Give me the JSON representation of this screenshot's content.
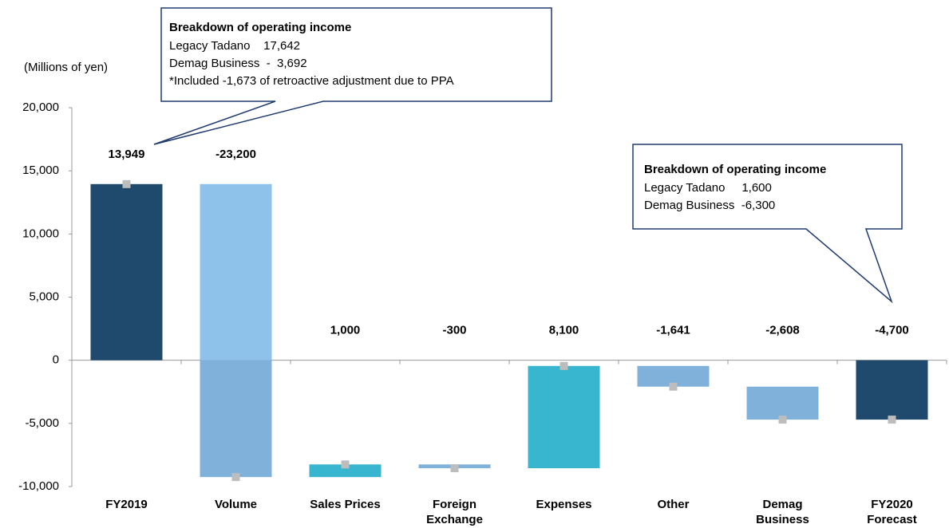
{
  "chart_data": {
    "type": "waterfall",
    "y_axis_label": "(Millions of yen)",
    "categories": [
      "FY2019",
      "Volume",
      "Sales Prices",
      "Foreign Exchange",
      "Expenses",
      "Other",
      "Demag Business",
      "FY2020 Forecast"
    ],
    "values": [
      13949,
      -23200,
      1000,
      -300,
      8100,
      -1641,
      -2608,
      -4700
    ],
    "value_labels": [
      "13,949",
      "-23,200",
      "1,000",
      "-300",
      "8,100",
      "-1,641",
      "-2,608",
      "-4,700"
    ],
    "totals": [
      true,
      false,
      false,
      false,
      false,
      false,
      false,
      true
    ],
    "colors": [
      "#204a6d",
      "#7fb1da",
      "#38b6d0",
      "#7fb1da",
      "#38b6d0",
      "#7fb1da",
      "#7fb1da",
      "#204a6d"
    ],
    "positive_part_color": "#8ec2ea",
    "marker_color": "#bdbdbd",
    "ylim": [
      -10000,
      20000
    ],
    "yticks": [
      {
        "value": -10000,
        "label": "-10,000"
      },
      {
        "value": -5000,
        "label": "-5,000"
      },
      0,
      {
        "value": 5000,
        "label": "5,000"
      },
      {
        "value": 10000,
        "label": "10,000"
      },
      {
        "value": 15000,
        "label": "15,000"
      },
      {
        "value": 20000,
        "label": "20,000"
      }
    ],
    "annotations": [
      {
        "title": "Breakdown of operating income",
        "lines": [
          "Legacy Tadano    17,642",
          "Demag Business  -  3,692",
          "*Included -1,673 of retroactive adjustment due to PPA"
        ]
      },
      {
        "title": "Breakdown of operating income",
        "lines": [
          "Legacy Tadano     1,600",
          "Demag Business  -6,300"
        ]
      }
    ]
  }
}
